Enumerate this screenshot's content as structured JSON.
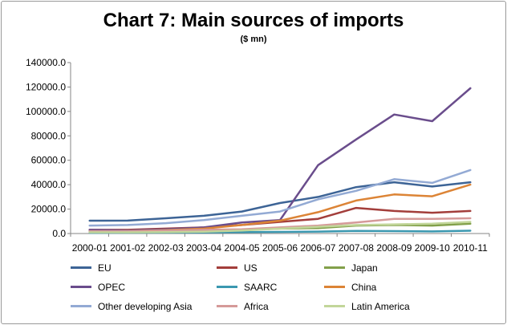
{
  "chart_data": {
    "type": "line",
    "title": "Chart 7: Main sources of imports",
    "subtitle": "($ mn)",
    "xlabel": "",
    "ylabel": "",
    "ylim": [
      0,
      140000
    ],
    "yticks": [
      "0.0",
      "20000.0",
      "40000.0",
      "60000.0",
      "80000.0",
      "100000.0",
      "120000.0",
      "140000.0"
    ],
    "categories": [
      "2000-01",
      "2001-02",
      "2002-03",
      "2003-04",
      "2004-05",
      "2005-06",
      "2006-07",
      "2007-08",
      "2008-09",
      "2009-10",
      "2010-11"
    ],
    "grid": false,
    "legend_position": "bottom",
    "series": [
      {
        "name": "EU",
        "color": "#3d6496",
        "values": [
          10500,
          10600,
          12500,
          14500,
          18000,
          25000,
          30000,
          38000,
          42000,
          38500,
          42000
        ]
      },
      {
        "name": "US",
        "color": "#a33e3b",
        "values": [
          3000,
          3000,
          4000,
          5000,
          7000,
          9500,
          12000,
          21000,
          18500,
          17000,
          18500
        ]
      },
      {
        "name": "Japan",
        "color": "#82a04a",
        "values": [
          2000,
          2000,
          2000,
          2500,
          3000,
          4000,
          4500,
          6500,
          7000,
          6500,
          8000
        ]
      },
      {
        "name": "OPEC",
        "color": "#6a4d8c",
        "values": [
          3000,
          2500,
          3500,
          5000,
          9000,
          11000,
          56000,
          77000,
          97500,
          92000,
          119000
        ]
      },
      {
        "name": "SAARC",
        "color": "#3b98b0",
        "values": [
          600,
          700,
          800,
          900,
          1100,
          1300,
          1600,
          2200,
          2000,
          1700,
          2300
        ]
      },
      {
        "name": "China",
        "color": "#dc8436",
        "values": [
          1500,
          2000,
          2800,
          4000,
          7000,
          10500,
          17500,
          27000,
          32000,
          30500,
          40000
        ]
      },
      {
        "name": "Other developing Asia",
        "color": "#93aad4",
        "values": [
          6500,
          7000,
          8500,
          11000,
          14500,
          18000,
          28000,
          35000,
          44500,
          41500,
          52000
        ]
      },
      {
        "name": "Africa",
        "color": "#d59a99",
        "values": [
          2000,
          2000,
          2500,
          3000,
          3500,
          5000,
          6500,
          9000,
          12000,
          12000,
          12500
        ]
      },
      {
        "name": "Latin America",
        "color": "#c2d69a",
        "values": [
          1000,
          1000,
          1200,
          1500,
          2500,
          4000,
          5500,
          7000,
          7500,
          8000,
          9500
        ]
      }
    ]
  }
}
